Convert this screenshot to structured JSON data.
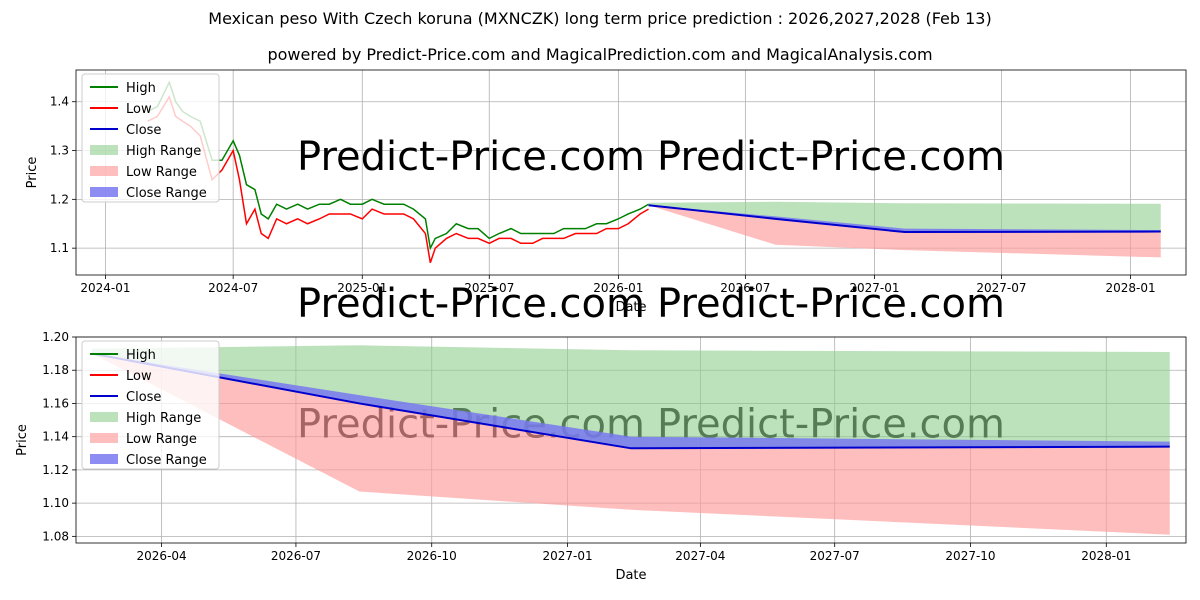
{
  "chart_data": [
    {
      "type": "line",
      "title": "Mexican peso With Czech koruna (MXNCZK) long term price prediction : 2026,2027,2028 (Feb 13)",
      "subtitle": "powered by Predict-Price.com and MagicalPrediction.com and MagicalAnalysis.com",
      "watermark": "Predict-Price.com",
      "xlabel": "Date",
      "ylabel": "Price",
      "xlim": [
        "2023-11-20",
        "2028-03-20"
      ],
      "ylim": [
        1.045,
        1.465
      ],
      "xticks": [
        {
          "label": "2024-01",
          "date": "2024-01-01"
        },
        {
          "label": "2024-07",
          "date": "2024-07-01"
        },
        {
          "label": "2025-01",
          "date": "2025-01-01"
        },
        {
          "label": "2025-07",
          "date": "2025-07-01"
        },
        {
          "label": "2026-01",
          "date": "2026-01-01"
        },
        {
          "label": "2026-07",
          "date": "2026-07-01"
        },
        {
          "label": "2027-01",
          "date": "2027-01-01"
        },
        {
          "label": "2027-07",
          "date": "2027-07-01"
        },
        {
          "label": "2028-01",
          "date": "2028-01-01"
        }
      ],
      "yticks": [
        1.1,
        1.2,
        1.3,
        1.4
      ],
      "legend": {
        "position": "top-left",
        "entries": [
          "High",
          "Low",
          "Close",
          "High Range",
          "Low Range",
          "Close Range"
        ]
      },
      "colors": {
        "high": "#008000",
        "low": "#ff0000",
        "close": "#0000cc",
        "high_range": "#8fce8f",
        "low_range": "#ff9b9b",
        "close_range": "#7878f0"
      },
      "history": {
        "dates": [
          "2024-03-01",
          "2024-03-15",
          "2024-04-01",
          "2024-04-10",
          "2024-04-20",
          "2024-05-01",
          "2024-05-15",
          "2024-06-01",
          "2024-06-15",
          "2024-07-01",
          "2024-07-10",
          "2024-07-20",
          "2024-08-01",
          "2024-08-10",
          "2024-08-20",
          "2024-09-01",
          "2024-09-15",
          "2024-10-01",
          "2024-10-15",
          "2024-11-01",
          "2024-11-15",
          "2024-12-01",
          "2024-12-15",
          "2025-01-01",
          "2025-01-15",
          "2025-02-01",
          "2025-02-15",
          "2025-03-01",
          "2025-03-15",
          "2025-04-01",
          "2025-04-08",
          "2025-04-15",
          "2025-05-01",
          "2025-05-15",
          "2025-06-01",
          "2025-06-15",
          "2025-07-01",
          "2025-07-15",
          "2025-08-01",
          "2025-08-15",
          "2025-09-01",
          "2025-09-15",
          "2025-10-01",
          "2025-10-15",
          "2025-11-01",
          "2025-11-15",
          "2025-12-01",
          "2025-12-15",
          "2026-01-01",
          "2026-01-15",
          "2026-02-01",
          "2026-02-13"
        ],
        "high": [
          1.38,
          1.39,
          1.44,
          1.4,
          1.38,
          1.37,
          1.36,
          1.28,
          1.28,
          1.32,
          1.29,
          1.23,
          1.22,
          1.17,
          1.16,
          1.19,
          1.18,
          1.19,
          1.18,
          1.19,
          1.19,
          1.2,
          1.19,
          1.19,
          1.2,
          1.19,
          1.19,
          1.19,
          1.18,
          1.16,
          1.1,
          1.12,
          1.13,
          1.15,
          1.14,
          1.14,
          1.12,
          1.13,
          1.14,
          1.13,
          1.13,
          1.13,
          1.13,
          1.14,
          1.14,
          1.14,
          1.15,
          1.15,
          1.16,
          1.17,
          1.18,
          1.19
        ],
        "low": [
          1.36,
          1.37,
          1.41,
          1.37,
          1.36,
          1.35,
          1.33,
          1.24,
          1.26,
          1.3,
          1.24,
          1.15,
          1.18,
          1.13,
          1.12,
          1.16,
          1.15,
          1.16,
          1.15,
          1.16,
          1.17,
          1.17,
          1.17,
          1.16,
          1.18,
          1.17,
          1.17,
          1.17,
          1.16,
          1.13,
          1.07,
          1.1,
          1.12,
          1.13,
          1.12,
          1.12,
          1.11,
          1.12,
          1.12,
          1.11,
          1.11,
          1.12,
          1.12,
          1.12,
          1.13,
          1.13,
          1.13,
          1.14,
          1.14,
          1.15,
          1.17,
          1.18
        ]
      },
      "forecast": {
        "dates": [
          "2026-02-13",
          "2026-08-13",
          "2027-02-13",
          "2028-02-13"
        ],
        "close": [
          1.188,
          1.16,
          1.133,
          1.134
        ],
        "close_upper": [
          1.188,
          1.165,
          1.14,
          1.137
        ],
        "high_upper": [
          1.193,
          1.195,
          1.192,
          1.191
        ],
        "low_lower": [
          1.188,
          1.107,
          1.096,
          1.081
        ]
      }
    },
    {
      "type": "line",
      "xlabel": "Date",
      "ylabel": "Price",
      "watermark": "Predict-Price.com",
      "xlim": [
        "2026-02-02",
        "2028-02-24"
      ],
      "ylim": [
        1.076,
        1.2
      ],
      "xticks": [
        {
          "label": "2026-04",
          "date": "2026-04-01"
        },
        {
          "label": "2026-07",
          "date": "2026-07-01"
        },
        {
          "label": "2026-10",
          "date": "2026-10-01"
        },
        {
          "label": "2027-01",
          "date": "2027-01-01"
        },
        {
          "label": "2027-04",
          "date": "2027-04-01"
        },
        {
          "label": "2027-07",
          "date": "2027-07-01"
        },
        {
          "label": "2027-10",
          "date": "2027-10-01"
        },
        {
          "label": "2028-01",
          "date": "2028-01-01"
        }
      ],
      "yticks": [
        1.08,
        1.1,
        1.12,
        1.14,
        1.16,
        1.18,
        1.2
      ],
      "legend": {
        "position": "top-left",
        "entries": [
          "High",
          "Low",
          "Close",
          "High Range",
          "Low Range",
          "Close Range"
        ]
      },
      "forecast": {
        "dates": [
          "2026-02-13",
          "2026-08-13",
          "2027-02-13",
          "2028-02-13"
        ],
        "close": [
          1.19,
          1.16,
          1.133,
          1.134
        ],
        "close_upper": [
          1.19,
          1.165,
          1.14,
          1.137
        ],
        "high_upper": [
          1.193,
          1.195,
          1.192,
          1.191
        ],
        "low_lower": [
          1.19,
          1.107,
          1.096,
          1.081
        ]
      }
    }
  ]
}
